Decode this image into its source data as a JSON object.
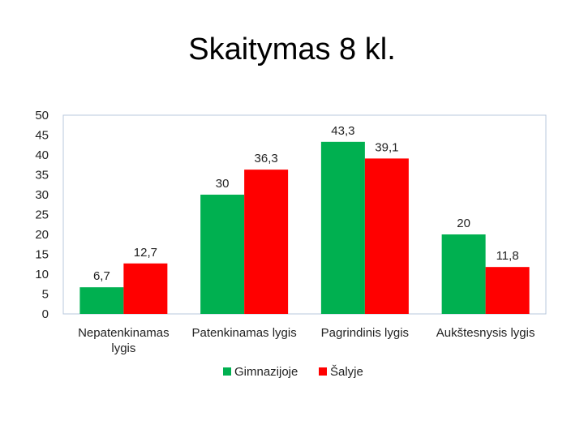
{
  "chart_data": {
    "type": "bar",
    "title": "Skaitymas 8 kl.",
    "categories": [
      [
        "Nepatenkinamas",
        "lygis"
      ],
      [
        "Patenkinamas lygis"
      ],
      [
        "Pagrindinis lygis"
      ],
      [
        "Aukštesnysis lygis"
      ]
    ],
    "series": [
      {
        "name": "Gimnazijoje",
        "color": "#00B050",
        "values": [
          6.7,
          30,
          43.3,
          20
        ],
        "labels": [
          "6,7",
          "30",
          "43,3",
          "20"
        ]
      },
      {
        "name": "Šalyje",
        "color": "#FF0000",
        "values": [
          12.7,
          36.3,
          39.1,
          11.8
        ],
        "labels": [
          "12,7",
          "36,3",
          "39,1",
          "11,8"
        ]
      }
    ],
    "ylim": [
      0,
      50
    ],
    "yticks": [
      0,
      5,
      10,
      15,
      20,
      25,
      30,
      35,
      40,
      45,
      50
    ],
    "grid": false,
    "legend_position": "bottom"
  }
}
